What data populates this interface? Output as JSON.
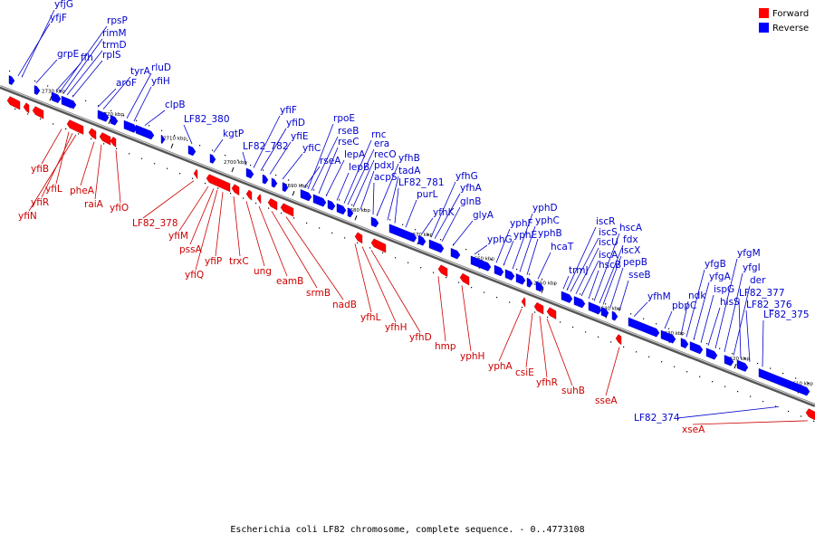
{
  "caption": "Escherichia coli LF82 chromosome, complete sequence. - 0..4773108",
  "colors": {
    "forward": "#ff0000",
    "reverse": "#0000ff",
    "forward_text": "#cc0000",
    "reverse_text": "#0000cc",
    "axis": "#808080"
  },
  "legend": [
    {
      "key": "forward",
      "label": "Forward"
    },
    {
      "key": "reverse",
      "label": "Reverse"
    }
  ],
  "ticks": [
    "2730 kbp",
    "2720 kbp",
    "2710 kbp",
    "2700 kbp",
    "2690 kbp",
    "2680 kbp",
    "2670 kbp",
    "2660 kbp",
    "2650 kbp",
    "2640 kbp",
    "2630 kbp",
    "2620 kbp",
    "2610 kbp"
  ],
  "reverse_genes": [
    "yfjG",
    "yfjF",
    "grpE",
    "ffh",
    "rpsP",
    "rimM",
    "trmD",
    "rplS",
    "aroF",
    "tyrA",
    "rluD",
    "yfiH",
    "clpB",
    "LF82_380",
    "kgtP",
    "LF82_782",
    "yfiF",
    "yfiD",
    "yfiE",
    "yfiC",
    "rseA",
    "rpoE",
    "rseB",
    "rseC",
    "lepA",
    "lepB",
    "rnc",
    "era",
    "recO",
    "pdxJ",
    "acpS",
    "yfhB",
    "tadA",
    "LF82_781",
    "purL",
    "yfhK",
    "yfhG",
    "yfhA",
    "glnB",
    "glyA",
    "yphG",
    "yphF",
    "yphE",
    "yphD",
    "yphC",
    "yphB",
    "hcaT",
    "trmJ",
    "iscR",
    "iscS",
    "iscU",
    "iscA",
    "hscB",
    "hscA",
    "fdx",
    "iscX",
    "pepB",
    "sseB",
    "yfhM",
    "pbpC",
    "ndk",
    "yfgB",
    "yfgA",
    "ispG",
    "hisS",
    "yfgM",
    "yfgI",
    "der",
    "LF82_377",
    "LF82_376",
    "LF82_375",
    "LF82_374"
  ],
  "forward_genes": [
    "yfiB",
    "yfiL",
    "yfiR",
    "yfiN",
    "pheA",
    "raiA",
    "yfiO",
    "LF82_378",
    "yfiM",
    "pssA",
    "yfiQ",
    "yfiP",
    "trxC",
    "ung",
    "eamB",
    "srmB",
    "nadB",
    "yfhL",
    "yfhH",
    "yfhD",
    "hmp",
    "yphH",
    "yphA",
    "csiE",
    "yfhR",
    "suhB",
    "sseA",
    "xseA"
  ]
}
